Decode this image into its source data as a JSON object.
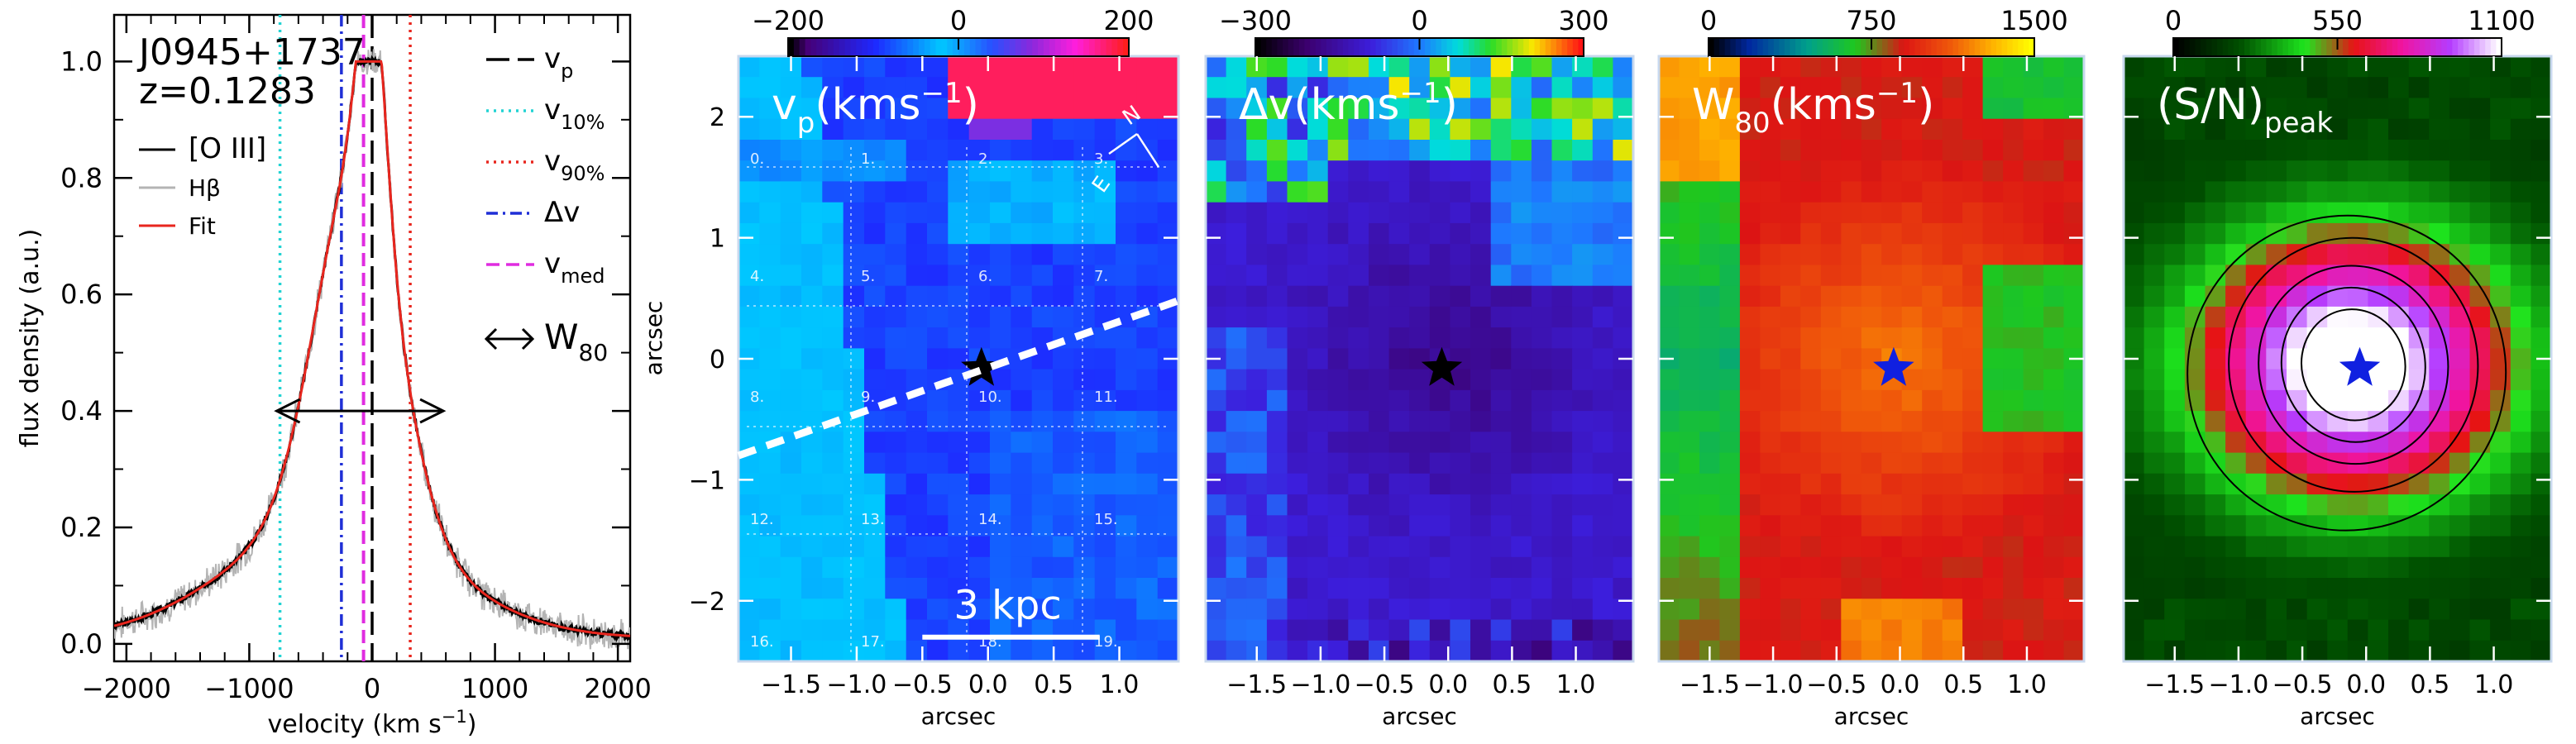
{
  "spectrum": {
    "object": "J0945+1737",
    "redshift": "z=0.1283",
    "xlabel": "velocity (km s",
    "xlabel_sup": "−1",
    "xlabel_end": ")",
    "ylabel": "flux density (a.u.)",
    "xlim": [
      -2100,
      2100
    ],
    "ylim": [
      -0.03,
      1.08
    ],
    "xticks": [
      -2000,
      -1000,
      0,
      1000,
      2000
    ],
    "yticks": [
      0.0,
      0.2,
      0.4,
      0.6,
      0.8,
      1.0
    ],
    "ytick_labels": [
      "0.0",
      "0.2",
      "0.4",
      "0.6",
      "0.8",
      "1.0"
    ],
    "legend_left": [
      {
        "label": "[O III]",
        "color": "#000000"
      },
      {
        "label": "Hβ",
        "color": "#b4b4b4"
      },
      {
        "label": "Fit",
        "color": "#e8261e"
      }
    ],
    "legend_right": [
      {
        "label": "v",
        "sub": "p",
        "color": "#000000",
        "dash": "28,10"
      },
      {
        "label": "v",
        "sub": "10%",
        "color": "#22d3d3",
        "dash": "3,6"
      },
      {
        "label": "v",
        "sub": "90%",
        "color": "#e8261e",
        "dash": "3,6"
      },
      {
        "label": "Δv",
        "sub": "",
        "color": "#1f2fd6",
        "dash": "14,6,3,6"
      },
      {
        "label": "v",
        "sub": "med",
        "color": "#e02ce0",
        "dash": "16,8"
      },
      {
        "label": "W",
        "sub": "80",
        "color": "#000000",
        "dash": ""
      }
    ],
    "markers": {
      "v_p": 0,
      "v10": -750,
      "v90": 310,
      "delta_v": -250,
      "v_med": -70
    },
    "w80_range": [
      -750,
      310
    ],
    "w80_level": 0.4
  },
  "chart_data": {
    "type": "line",
    "title": "J0945+1737",
    "xlabel": "velocity (km s−1)",
    "ylabel": "flux density (a.u.)",
    "x": [
      -2000,
      -1800,
      -1600,
      -1400,
      -1200,
      -1000,
      -900,
      -800,
      -700,
      -600,
      -500,
      -400,
      -300,
      -200,
      -150,
      -100,
      -50,
      0,
      50,
      100,
      150,
      200,
      300,
      400,
      500,
      600,
      700,
      800,
      1000,
      1200,
      1400,
      1600,
      1800,
      2000
    ],
    "series": [
      {
        "name": "[O III]",
        "values": [
          0.02,
          0.02,
          0.03,
          0.04,
          0.05,
          0.08,
          0.1,
          0.13,
          0.16,
          0.2,
          0.25,
          0.33,
          0.45,
          0.65,
          0.78,
          0.9,
          0.98,
          1.0,
          0.95,
          0.8,
          0.62,
          0.45,
          0.3,
          0.22,
          0.17,
          0.14,
          0.11,
          0.09,
          0.06,
          0.04,
          0.03,
          0.02,
          0.01,
          0.01
        ]
      },
      {
        "name": "Fit",
        "values": [
          0.02,
          0.02,
          0.03,
          0.04,
          0.05,
          0.08,
          0.1,
          0.13,
          0.16,
          0.2,
          0.25,
          0.33,
          0.45,
          0.65,
          0.79,
          0.91,
          0.98,
          1.0,
          0.95,
          0.8,
          0.62,
          0.45,
          0.3,
          0.22,
          0.17,
          0.14,
          0.11,
          0.09,
          0.06,
          0.04,
          0.03,
          0.02,
          0.01,
          0.01
        ]
      },
      {
        "name": "Hβ",
        "values": [
          0.01,
          0.03,
          0.02,
          0.05,
          0.04,
          0.09,
          0.09,
          0.14,
          0.15,
          0.21,
          0.24,
          0.35,
          0.44,
          0.66,
          0.77,
          0.92,
          0.97,
          0.99,
          0.96,
          0.78,
          0.64,
          0.44,
          0.31,
          0.21,
          0.18,
          0.13,
          0.12,
          0.08,
          0.07,
          0.03,
          0.04,
          0.02,
          0.02,
          0.01
        ]
      }
    ]
  },
  "maps": {
    "xticks": [
      -1.5,
      -1.0,
      -0.5,
      0.0,
      0.5,
      1.0
    ],
    "xtick_labels": [
      "−1.5",
      "−1.0",
      "−0.5",
      "0.0",
      "0.5",
      "1.0"
    ],
    "yticks": [
      2,
      1,
      0,
      -1,
      -2
    ],
    "ytick_labels": [
      "2",
      "1",
      "0",
      "−1",
      "−2"
    ],
    "xlim": [
      -1.9,
      1.45
    ],
    "ylim": [
      -2.5,
      2.5
    ],
    "xlabel": "arcsec",
    "ylabel": "arcsec",
    "panels": [
      {
        "title": "v",
        "title_sub": "p",
        "title_unit": "(kms",
        "title_sup": "−1",
        "title_end": ")",
        "cbar_ticks": [
          "−200",
          "0",
          "200"
        ],
        "cmap": "v",
        "star_color": "#000000",
        "title_color": "#ffffff"
      },
      {
        "title": "Δv",
        "title_sub": "",
        "title_unit": "(kms",
        "title_sup": "−1",
        "title_end": ")",
        "cbar_ticks": [
          "−300",
          "0",
          "300"
        ],
        "cmap": "dv",
        "star_color": "#000000",
        "title_color": "#ffffff"
      },
      {
        "title": "W",
        "title_sub": "80",
        "title_unit": "(kms",
        "title_sup": "−1",
        "title_end": ")",
        "cbar_ticks": [
          "0",
          "750",
          "1500"
        ],
        "cmap": "w80",
        "star_color": "#1020e0",
        "title_color": "#ffffff"
      },
      {
        "title": "(S/N)",
        "title_sub": "peak",
        "title_unit": "",
        "title_sup": "",
        "title_end": "",
        "cbar_ticks": [
          "0",
          "550",
          "1100"
        ],
        "cmap": "sn",
        "star_color": "#1020e0",
        "title_color": "#ffffff"
      }
    ],
    "grid_numbers": [
      "0.",
      "1.",
      "2.",
      "3.",
      "4.",
      "5.",
      "6.",
      "7.",
      "8.",
      "9.",
      "10.",
      "11.",
      "12.",
      "13.",
      "14.",
      "15.",
      "16.",
      "17.",
      "18.",
      "19."
    ],
    "scalebar": "3 kpc",
    "compass": {
      "north": "N",
      "east": "E"
    }
  }
}
